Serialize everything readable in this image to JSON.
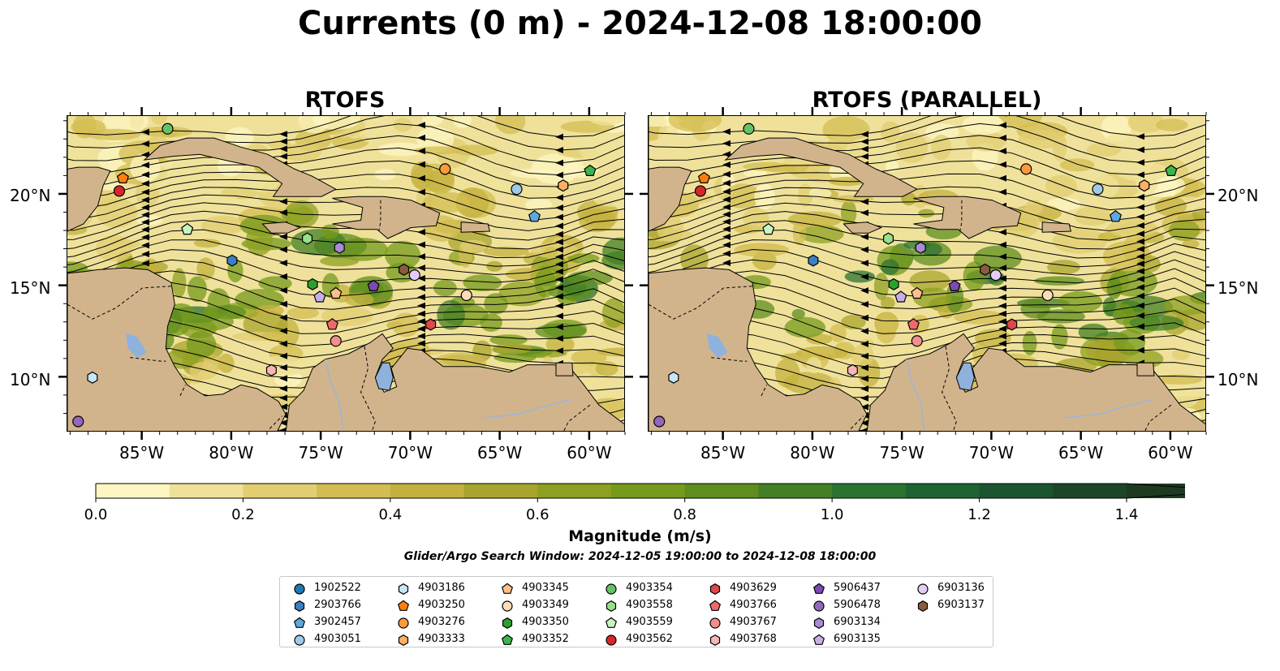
{
  "title": "Currents (0 m) - 2024-12-08 18:00:00",
  "panels": [
    {
      "title": "RTOFS"
    },
    {
      "title": "RTOFS (PARALLEL)"
    }
  ],
  "lat_labels": [
    "20°N",
    "15°N",
    "10°N"
  ],
  "lon_labels": [
    "85°W",
    "80°W",
    "75°W",
    "70°W",
    "65°W",
    "60°W"
  ],
  "colorbar": {
    "label": "Magnitude (m/s)",
    "ticks": [
      "0.0",
      "0.2",
      "0.4",
      "0.6",
      "0.8",
      "1.0",
      "1.2",
      "1.4"
    ],
    "levels": [
      0.0,
      0.1,
      0.2,
      0.3,
      0.4,
      0.5,
      0.6,
      0.7,
      0.8,
      0.9,
      1.0,
      1.1,
      1.2,
      1.3,
      1.4,
      1.5
    ],
    "colors": [
      "#fdf6c2",
      "#efe19a",
      "#e2ce72",
      "#d3bd52",
      "#c4b13d",
      "#a9a42d",
      "#8ea021",
      "#759a1c",
      "#5d8e1e",
      "#437f24",
      "#2c7230",
      "#1e6331",
      "#1a552f",
      "#1d4528",
      "#1e3a22"
    ],
    "extend": "max"
  },
  "search_window": "Glider/Argo Search Window: 2024-12-05 19:00:00 to 2024-12-08 18:00:00",
  "map_colors": {
    "land": "#d2b48c",
    "lakes": "#8fb2dd",
    "rivers": "#9bb4d8",
    "borders": "#000000"
  },
  "floats": [
    {
      "id": "1902522",
      "marker": "circle",
      "color": "#1f77b4",
      "lon": null,
      "lat": null
    },
    {
      "id": "2903766",
      "marker": "hexagon",
      "color": "#3b7fc4",
      "lon": -80.0,
      "lat": 16.4
    },
    {
      "id": "3902457",
      "marker": "pentagon",
      "color": "#5da8e0",
      "lon": -63.1,
      "lat": 18.8
    },
    {
      "id": "4903051",
      "marker": "circle",
      "color": "#9ecae9",
      "lon": -64.1,
      "lat": 20.3
    },
    {
      "id": "4903186",
      "marker": "hexagon",
      "color": "#c6e6f5",
      "lon": -87.8,
      "lat": 10.0
    },
    {
      "id": "4903250",
      "marker": "pentagon",
      "color": "#ff7f0e",
      "lon": -86.1,
      "lat": 20.9
    },
    {
      "id": "4903276",
      "marker": "circle",
      "color": "#ff9a3c",
      "lon": -68.1,
      "lat": 21.4
    },
    {
      "id": "4903333",
      "marker": "hexagon",
      "color": "#ffb066",
      "lon": -61.5,
      "lat": 20.5
    },
    {
      "id": "4903345",
      "marker": "pentagon",
      "color": "#ffc08a",
      "lon": -74.2,
      "lat": 14.6
    },
    {
      "id": "4903349",
      "marker": "circle",
      "color": "#ffdcb8",
      "lon": -66.9,
      "lat": 14.5
    },
    {
      "id": "4903350",
      "marker": "hexagon",
      "color": "#2ca02c",
      "lon": -75.5,
      "lat": 15.1
    },
    {
      "id": "4903352",
      "marker": "pentagon",
      "color": "#3cb44b",
      "lon": -60.0,
      "lat": 21.3
    },
    {
      "id": "4903354",
      "marker": "circle",
      "color": "#66c266",
      "lon": -83.6,
      "lat": 23.6
    },
    {
      "id": "4903558",
      "marker": "hexagon",
      "color": "#98df8a",
      "lon": -75.8,
      "lat": 17.6
    },
    {
      "id": "4903559",
      "marker": "pentagon",
      "color": "#c7f5c0",
      "lon": -82.5,
      "lat": 18.1
    },
    {
      "id": "4903562",
      "marker": "circle",
      "color": "#d62728",
      "lon": -86.3,
      "lat": 20.2
    },
    {
      "id": "4903629",
      "marker": "hexagon",
      "color": "#e0474a",
      "lon": -68.9,
      "lat": 12.9
    },
    {
      "id": "4903766",
      "marker": "pentagon",
      "color": "#ee6a6a",
      "lon": -74.4,
      "lat": 12.9
    },
    {
      "id": "4903767",
      "marker": "circle",
      "color": "#f28e8e",
      "lon": -74.2,
      "lat": 12.0
    },
    {
      "id": "4903768",
      "marker": "hexagon",
      "color": "#f7b6b6",
      "lon": -77.8,
      "lat": 10.4
    },
    {
      "id": "5906437",
      "marker": "pentagon",
      "color": "#7b4ab2",
      "lon": -72.1,
      "lat": 15.0
    },
    {
      "id": "5906478",
      "marker": "circle",
      "color": "#9467bd",
      "lon": -88.6,
      "lat": 7.6
    },
    {
      "id": "6903134",
      "marker": "hexagon",
      "color": "#a98bd6",
      "lon": -74.0,
      "lat": 17.1
    },
    {
      "id": "6903135",
      "marker": "pentagon",
      "color": "#c5b0e6",
      "lon": -75.1,
      "lat": 14.4
    },
    {
      "id": "6903136",
      "marker": "circle",
      "color": "#e3ccf5",
      "lon": -69.8,
      "lat": 15.6
    },
    {
      "id": "6903137",
      "marker": "hexagon",
      "color": "#8c5a3c",
      "lon": -70.4,
      "lat": 15.9
    }
  ],
  "float_positions_parallel_note": "",
  "extent": {
    "lon_min": -89.2,
    "lon_max": -58.0,
    "lat_min": 7.0,
    "lat_max": 24.3
  }
}
